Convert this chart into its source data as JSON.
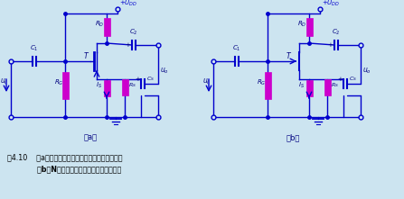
{
  "title_line1": "图4.10    （a）耗尽型绝缘栅场效应管的自给偏压电路",
  "title_line2": "            （b）N沟道结型场效应管的自给编压电路",
  "label_a": "（a）",
  "label_b": "（b）",
  "bg_color": "#cce4f0",
  "wire_color": "#0000cc",
  "resistor_color": "#cc00cc",
  "text_color": "#000080",
  "fig_width": 4.47,
  "fig_height": 2.21,
  "dpi": 100
}
